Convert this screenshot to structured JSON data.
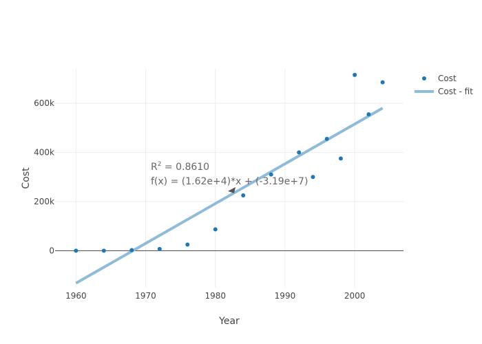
{
  "chart_data": {
    "type": "scatter",
    "xlabel": "Year",
    "ylabel": "Cost",
    "xlim": [
      1957,
      2007
    ],
    "ylim": [
      -150000,
      740000
    ],
    "x_ticks": [
      1960,
      1970,
      1980,
      1990,
      2000
    ],
    "y_ticks": [
      0,
      200000,
      400000,
      600000
    ],
    "y_tick_labels": [
      "0",
      "200k",
      "400k",
      "600k"
    ],
    "grid": true,
    "legend_position": "top-right",
    "series": [
      {
        "name": "Cost",
        "type": "scatter",
        "color": "#1f77b4",
        "x": [
          1960,
          1964,
          1968,
          1972,
          1976,
          1980,
          1984,
          1988,
          1992,
          1994,
          1996,
          1998,
          2000,
          2002,
          2004
        ],
        "y": [
          0,
          0,
          2500,
          7000,
          25000,
          87000,
          225000,
          310000,
          400000,
          300000,
          455000,
          375000,
          715000,
          555000,
          685000
        ]
      },
      {
        "name": "Cost - fit",
        "type": "line",
        "color": "#8fbbd9",
        "x": [
          1960,
          2004
        ],
        "y": [
          -132000,
          580000
        ]
      }
    ],
    "annotation": {
      "r2_prefix": "R",
      "r2_sup": "2",
      "r2_value": " = 0.8610",
      "equation": "f(x) = (1.62e+4)*x + (-3.19e+7)",
      "arrow_x": 1982,
      "arrow_y": 242000
    }
  }
}
